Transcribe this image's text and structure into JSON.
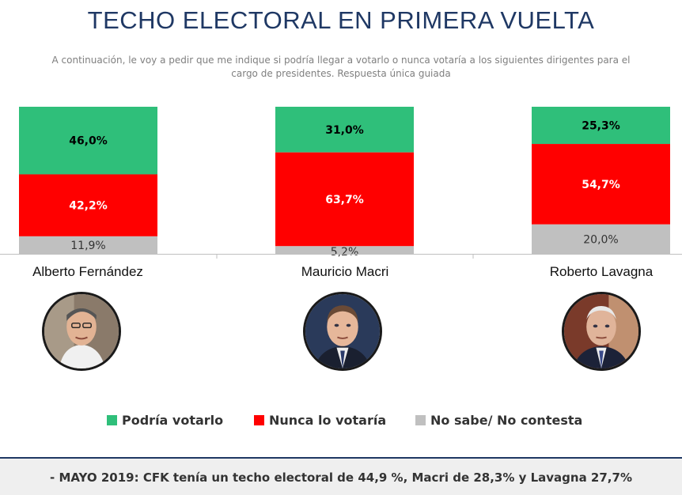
{
  "title": "TECHO ELECTORAL EN PRIMERA VUELTA",
  "subtitle": "A continuación, le voy a pedir que me indique si podría llegar a votarlo o nunca votaría a los siguientes dirigentes para el cargo de presidentes. Respuesta única guiada",
  "colors": {
    "podria": "#2fbf7a",
    "nunca": "#ff0000",
    "nosabe": "#c0c0c0",
    "title": "#1f3864"
  },
  "chart_data": {
    "type": "bar",
    "stacked": true,
    "normalized": true,
    "categories": [
      "Alberto Fernández",
      "Mauricio Macri",
      "Roberto Lavagna"
    ],
    "series": [
      {
        "name": "Podría votarlo",
        "values": [
          46.0,
          31.0,
          25.3
        ],
        "labels": [
          "46,0%",
          "31,0%",
          "25,3%"
        ]
      },
      {
        "name": "Nunca lo votaría",
        "values": [
          42.2,
          63.7,
          54.7
        ],
        "labels": [
          "42,2%",
          "63,7%",
          "54,7%"
        ]
      },
      {
        "name": "No sabe/ No contesta",
        "values": [
          11.9,
          5.2,
          20.0
        ],
        "labels": [
          "11,9%",
          "5,2%",
          "20,0%"
        ]
      }
    ],
    "stack_order_top_to_bottom": [
      "Podría votarlo",
      "Nunca lo votaría",
      "No sabe/ No contesta"
    ],
    "legend_position": "bottom",
    "grid": false
  },
  "candidates": [
    {
      "name": "Alberto Fernández",
      "photo": "portrait-alberto-fernandez"
    },
    {
      "name": "Mauricio Macri",
      "photo": "portrait-mauricio-macri"
    },
    {
      "name": "Roberto Lavagna",
      "photo": "portrait-roberto-lavagna"
    }
  ],
  "legend": [
    {
      "label": "Podría votarlo"
    },
    {
      "label": "Nunca lo votaría"
    },
    {
      "label": "No sabe/ No contesta"
    }
  ],
  "footer": "- MAYO 2019: CFK tenía un techo electoral de 44,9 %, Macri de 28,3% y Lavagna 27,7%"
}
